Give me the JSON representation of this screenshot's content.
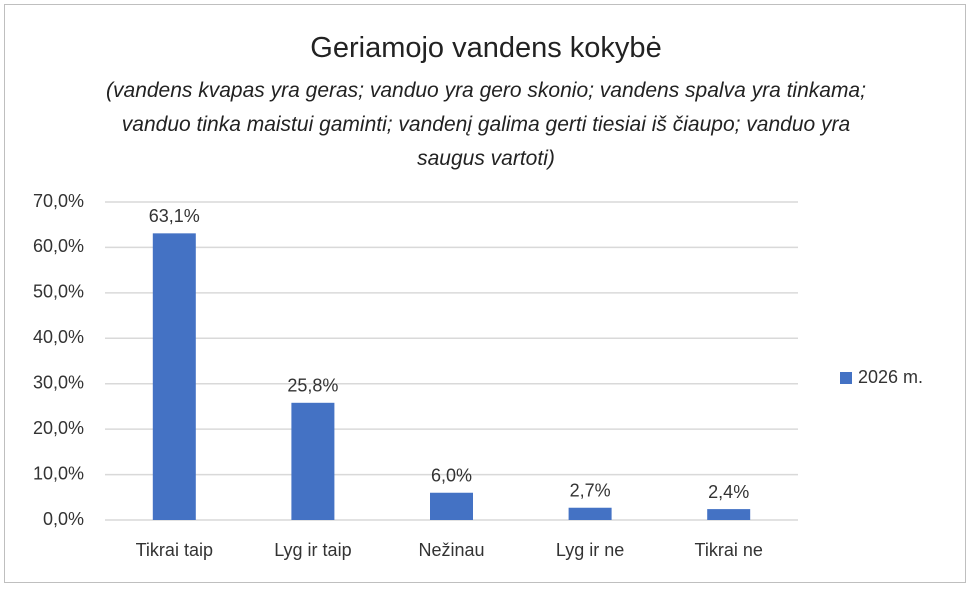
{
  "chart_data": {
    "type": "bar",
    "title": "Geriamojo vandens kokybė",
    "subtitle": "(vandens kvapas yra geras; vanduo yra gero skonio; vandens spalva yra tinkama; vanduo tinka maistui gaminti; vandenį galima gerti tiesiai iš čiaupo; vanduo yra saugus vartoti)",
    "categories": [
      "Tikrai taip",
      "Lyg ir taip",
      "Nežinau",
      "Lyg ir ne",
      "Tikrai ne"
    ],
    "series": [
      {
        "name": "2026 m.",
        "color": "#4472c4",
        "values": [
          63.1,
          25.8,
          6.0,
          2.7,
          2.4
        ],
        "value_labels": [
          "63,1%",
          "25,8%",
          "6,0%",
          "2,7%",
          "2,4%"
        ]
      }
    ],
    "ylim": [
      0,
      70
    ],
    "yticks": [
      {
        "value": 0,
        "label": "0,0%"
      },
      {
        "value": 10,
        "label": "10,0%"
      },
      {
        "value": 20,
        "label": "20,0%"
      },
      {
        "value": 30,
        "label": "30,0%"
      },
      {
        "value": 40,
        "label": "40,0%"
      },
      {
        "value": 50,
        "label": "50,0%"
      },
      {
        "value": 60,
        "label": "60,0%"
      },
      {
        "value": 70,
        "label": "70,0%"
      }
    ],
    "grid": true,
    "legend": "right"
  }
}
